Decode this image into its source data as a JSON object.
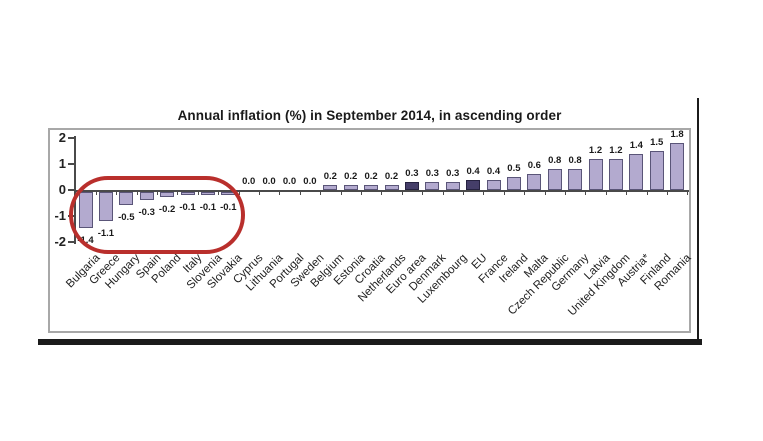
{
  "page": {
    "title": "Annual inflation (%) in September 2014, in ascending order"
  },
  "chart_data": {
    "type": "bar",
    "title": "Annual inflation (%) in September 2014, in ascending order",
    "categories": [
      "Bulgaria",
      "Greece",
      "Hungary",
      "Spain",
      "Poland",
      "Italy",
      "Slovenia",
      "Slovakia",
      "Cyprus",
      "Lithuania",
      "Portugal",
      "Sweden",
      "Belgium",
      "Estonia",
      "Croatia",
      "Netherlands",
      "Euro area",
      "Denmark",
      "Luxembourg",
      "EU",
      "France",
      "Ireland",
      "Malta",
      "Czech Republic",
      "Germany",
      "Latvia",
      "United Kingdom",
      "Austria*",
      "Finland",
      "Romania"
    ],
    "values": [
      -1.4,
      -1.1,
      -0.5,
      -0.3,
      -0.2,
      -0.1,
      -0.1,
      -0.1,
      0.0,
      0.0,
      0.0,
      0.0,
      0.2,
      0.2,
      0.2,
      0.2,
      0.3,
      0.3,
      0.3,
      0.4,
      0.4,
      0.5,
      0.6,
      0.8,
      0.8,
      1.2,
      1.2,
      1.4,
      1.5,
      1.8
    ],
    "value_label_format": "one-decimal",
    "xlabel": "",
    "ylabel": "",
    "ylim": [
      -2,
      2
    ],
    "yticks": [
      2,
      1,
      0,
      -1,
      -2
    ],
    "grid": false,
    "legend": "none",
    "bar_color": "#b3aacf",
    "bar_border_color": "#5a5578",
    "highlight_indices": [
      16,
      19
    ],
    "highlight_color": "#453e69",
    "highlight_border_color": "#262240",
    "axis_color": "#4a4a4a",
    "annotation": {
      "type": "red-rounded-oval",
      "color": "#b92f2c",
      "around": "negative-inflation bars Bulgaria through Slovakia"
    }
  }
}
